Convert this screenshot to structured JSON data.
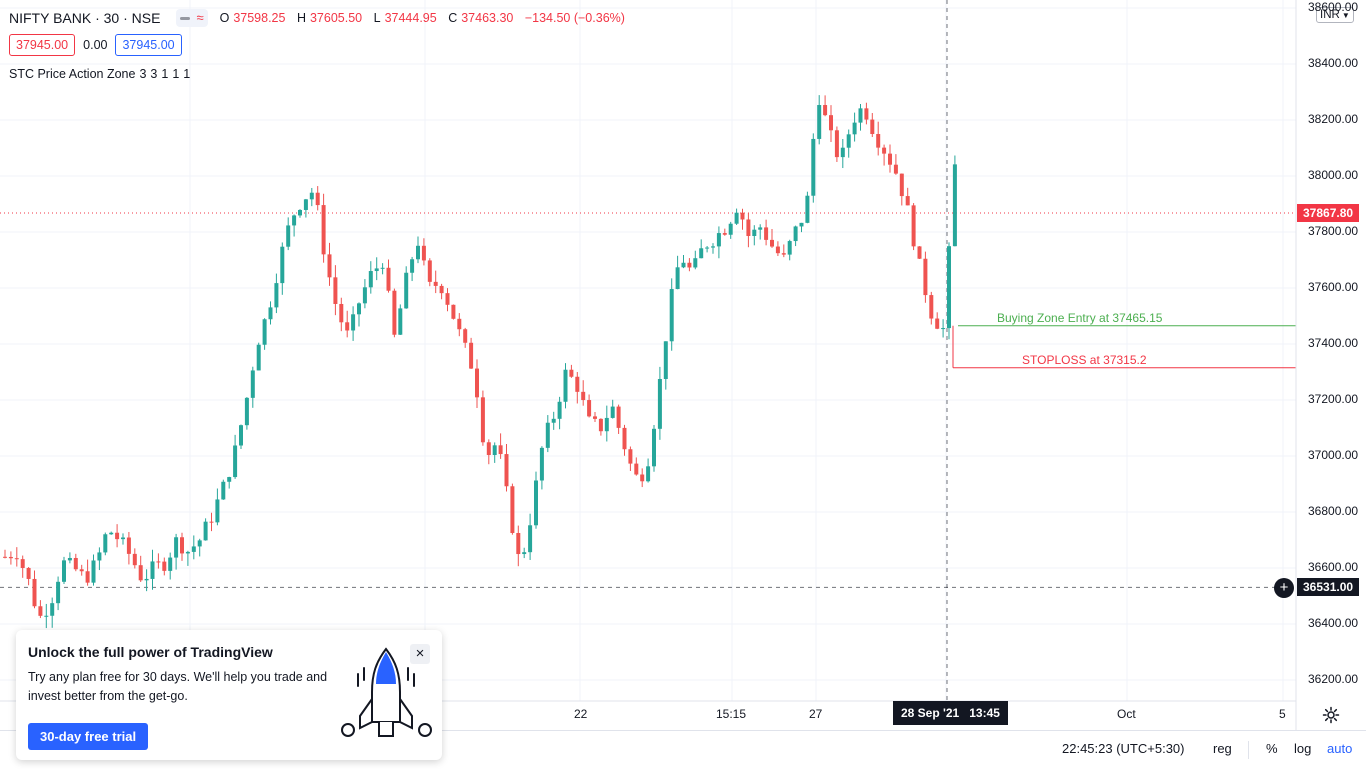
{
  "legend": {
    "symbol": "NIFTY BANK · 30 · NSE",
    "ohlc": {
      "o_label": "O",
      "o": "37598.25",
      "h_label": "H",
      "h": "37605.50",
      "l_label": "L",
      "l": "37444.95",
      "c_label": "C",
      "c": "37463.30",
      "change": "−134.50 (−0.36%)"
    }
  },
  "orders": {
    "sell": "37945.00",
    "spread": "0.00",
    "buy": "37945.00"
  },
  "indicator": {
    "name": "STC Price Action Zone",
    "params": [
      "3",
      "3",
      "1",
      "1",
      "1"
    ]
  },
  "currency": {
    "value": "INR"
  },
  "y_axis": {
    "ticks": [
      "38600.00",
      "38400.00",
      "38200.00",
      "38000.00",
      "37800.00",
      "37600.00",
      "37400.00",
      "37200.00",
      "37000.00",
      "36800.00",
      "36600.00",
      "36400.00",
      "36200.00"
    ],
    "last_price_tag": "37867.80",
    "crosshair_price_tag": "36531.00"
  },
  "x_axis": {
    "ticks": [
      "22",
      "15:15",
      "27",
      "Oct",
      "5"
    ],
    "crosshair_date": "28 Sep '21",
    "crosshair_time": "13:45"
  },
  "lines": {
    "buy_zone": "Buying Zone Entry at 37465.15",
    "stoploss": "STOPLOSS at 37315.2"
  },
  "bottom_bar": {
    "time": "22:45:23 (UTC+5:30)",
    "reg": "reg",
    "percent": "%",
    "log": "log",
    "auto": "auto"
  },
  "promo": {
    "title": "Unlock the full power of TradingView",
    "description": "Try any plan free for 30 days. We'll help you trade and invest better from the get-go.",
    "cta": "30-day free trial",
    "close": "×"
  },
  "colors": {
    "up": "#26a69a",
    "down": "#ef5350",
    "buy_line": "#4caf50",
    "stop_line": "#f23645",
    "accent": "#2962ff"
  },
  "chart_data": {
    "type": "candlestick",
    "title": "NIFTY BANK · 30 · NSE",
    "ylim": [
      36100,
      38650
    ],
    "grid": true,
    "close_path": [
      36640,
      36660,
      36560,
      36420,
      36480,
      36620,
      36600,
      36560,
      36620,
      36740,
      36700,
      36640,
      36560,
      36600,
      36620,
      36700,
      36660,
      36700,
      36780,
      36880,
      37000,
      37180,
      37400,
      37520,
      37700,
      37850,
      37920,
      37950,
      37700,
      37520,
      37420,
      37560,
      37650,
      37700,
      37420,
      37620,
      37780,
      37600,
      37620,
      37520,
      37400,
      37300,
      37000,
      37050,
      36820,
      36600,
      36800,
      37050,
      37150,
      37300,
      37250,
      37120,
      37100,
      37180,
      37050,
      36920,
      36950,
      37200,
      37520,
      37720,
      37650,
      37750,
      37780,
      37820,
      37900,
      37780,
      37820,
      37750,
      37700,
      37800,
      37880,
      38300,
      38150,
      38050,
      38200,
      38250,
      38150,
      38080,
      38000,
      37850,
      37650,
      37500,
      37450,
      38050,
      37880
    ],
    "buy_zone_level": 37465.15,
    "stoploss_level": 37315.2,
    "last_price": 37867.8,
    "crosshair_price": 36531.0
  }
}
